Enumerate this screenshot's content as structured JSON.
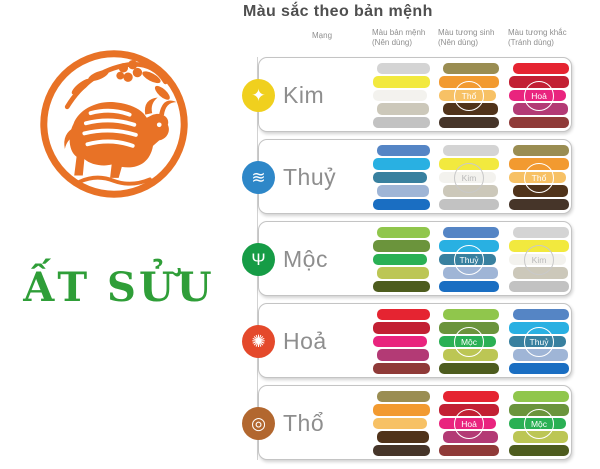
{
  "left_panel": {
    "year_name": "ẤT SỬU",
    "year_color": "#2f9e38",
    "zodiac_icon": "ox-papercut-icon",
    "zodiac_color": "#e87226"
  },
  "table": {
    "title": "Màu sắc theo bản mệnh",
    "headers": {
      "mang": "Mạng",
      "col1_line1": "Màu bản mệnh",
      "col1_line2": "(Nên dùng)",
      "col2_line1": "Màu tương sinh",
      "col2_line2": "(Nên dùng)",
      "col3_line1": "Màu tương khắc",
      "col3_line2": "(Tránh dùng)"
    },
    "palettes": {
      "kim": [
        "#d4d4d4",
        "#f2e93e",
        "#f3f2ee",
        "#ccc8ba",
        "#c2c2c2"
      ],
      "thuy": [
        "#5585c5",
        "#29b0e2",
        "#38809f",
        "#9fb5d6",
        "#1a6ec2"
      ],
      "moc": [
        "#90c64c",
        "#6b943c",
        "#2ab054",
        "#bcc654",
        "#4d5c1e"
      ],
      "hoa": [
        "#e52431",
        "#c22033",
        "#e9247e",
        "#b33a75",
        "#8f3a38"
      ],
      "tho": [
        "#9a8d52",
        "#f29a30",
        "#f7c165",
        "#50331a",
        "#463529"
      ]
    },
    "light_palettes": [
      "kim"
    ],
    "rows": [
      {
        "element": "Kim",
        "icon": "sparkle-icon",
        "icon_color": "#f0d01e",
        "own": "kim",
        "sinh": "tho",
        "sinh_label": "Thổ",
        "khac": "hoa",
        "khac_label": "Hoả"
      },
      {
        "element": "Thuỷ",
        "icon": "waves-icon",
        "icon_color": "#2e87c8",
        "own": "thuy",
        "sinh": "kim",
        "sinh_label": "Kim",
        "khac": "tho",
        "khac_label": "Thổ"
      },
      {
        "element": "Mộc",
        "icon": "plant-icon",
        "icon_color": "#169c46",
        "own": "moc",
        "sinh": "thuy",
        "sinh_label": "Thuỷ",
        "khac": "kim",
        "khac_label": "Kim"
      },
      {
        "element": "Hoả",
        "icon": "fire-icon",
        "icon_color": "#e4492b",
        "own": "hoa",
        "sinh": "moc",
        "sinh_label": "Mộc",
        "khac": "thuy",
        "khac_label": "Thuỷ"
      },
      {
        "element": "Thổ",
        "icon": "earth-icon",
        "icon_color": "#b2672f",
        "own": "tho",
        "sinh": "hoa",
        "sinh_label": "Hoả",
        "khac": "moc",
        "khac_label": "Mộc"
      }
    ]
  }
}
